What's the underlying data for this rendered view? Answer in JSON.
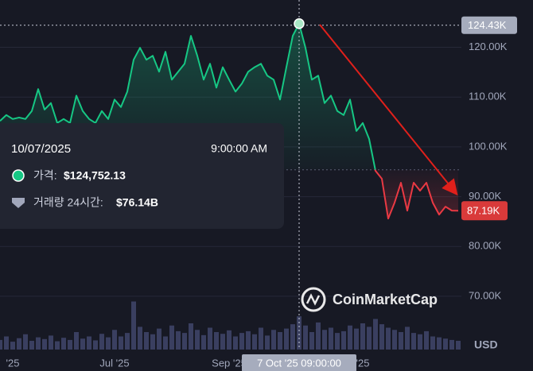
{
  "chart_data": {
    "type": "line",
    "title": "CoinMarketCap",
    "currency": "USD",
    "categories": [
      null,
      null,
      "'25",
      null,
      null,
      null,
      null,
      null,
      null,
      null,
      null,
      null,
      null,
      null,
      null,
      null,
      null,
      null,
      "Jul '25",
      null,
      null,
      null,
      null,
      null,
      null,
      null,
      null,
      null,
      null,
      null,
      null,
      null,
      null,
      null,
      null,
      null,
      "Sep '25",
      null,
      null,
      null,
      null,
      null,
      null,
      null,
      null,
      null,
      null,
      null,
      null,
      null,
      null,
      null,
      null,
      null,
      null,
      null,
      null,
      "'25",
      null,
      null,
      null,
      null,
      null,
      null,
      null,
      null,
      null,
      null,
      null,
      null,
      null,
      null,
      null
    ],
    "series": [
      {
        "name": "가격",
        "color": "#16c784",
        "below_color": "#ea3943",
        "values": [
          105.2,
          106.4,
          105.6,
          105.9,
          105.6,
          107.2,
          111.6,
          107.5,
          108.8,
          104.8,
          105.6,
          104.8,
          110.3,
          107.2,
          105.6,
          104.8,
          107.2,
          105.6,
          109.5,
          108.0,
          111.1,
          117.5,
          119.9,
          117.5,
          118.3,
          115.1,
          119.1,
          113.5,
          115.1,
          116.7,
          122.3,
          118.3,
          113.5,
          116.7,
          111.9,
          116.0,
          113.5,
          111.1,
          112.7,
          115.1,
          116.0,
          116.7,
          114.3,
          113.5,
          109.5,
          116.0,
          122.3,
          124.75,
          119.9,
          113.5,
          114.3,
          108.8,
          110.3,
          107.2,
          106.4,
          109.5,
          103.2,
          104.8,
          101.6,
          95.2,
          93.6,
          85.6,
          88.8,
          92.8,
          87.2,
          92.8,
          91.2,
          92.8,
          88.8,
          86.4,
          88.0,
          87.2,
          87.19
        ]
      }
    ],
    "volume": {
      "color": "#3a3f60",
      "values": [
        22,
        30,
        18,
        26,
        35,
        20,
        28,
        24,
        32,
        19,
        27,
        22,
        40,
        25,
        30,
        21,
        36,
        28,
        45,
        30,
        38,
        110,
        52,
        40,
        35,
        48,
        30,
        55,
        42,
        38,
        60,
        45,
        33,
        50,
        40,
        36,
        44,
        30,
        38,
        42,
        35,
        50,
        32,
        45,
        40,
        48,
        58,
        76.14,
        55,
        40,
        62,
        45,
        50,
        38,
        42,
        55,
        48,
        60,
        52,
        70,
        58,
        50,
        45,
        40,
        52,
        38,
        35,
        42,
        30,
        28,
        25,
        22,
        20
      ]
    },
    "ylim": [
      59.3,
      129.5
    ],
    "yticks": [
      {
        "value": 70,
        "label": "70.00K"
      },
      {
        "value": 80,
        "label": "80.00K"
      },
      {
        "value": 90,
        "label": "90.00K"
      },
      {
        "value": 100,
        "label": "100.00K"
      },
      {
        "value": 110,
        "label": "110.00K"
      },
      {
        "value": 120,
        "label": "120.00K"
      }
    ],
    "baseline": 95.4,
    "grid": true,
    "crosshair_index": 47,
    "crosshair_price": {
      "value": 124.43,
      "label": "124.43K"
    },
    "last_price": {
      "value": 87.19,
      "label": "87.19K"
    },
    "crosshair_x_label": "7 Oct '25 09:00:00",
    "tooltip": {
      "date": "10/07/2025",
      "time": "9:00:00 AM",
      "price_label": "가격:",
      "price": "$124,752.13",
      "volume_label": "거래량 24시간:",
      "volume": "$76.14B"
    }
  }
}
